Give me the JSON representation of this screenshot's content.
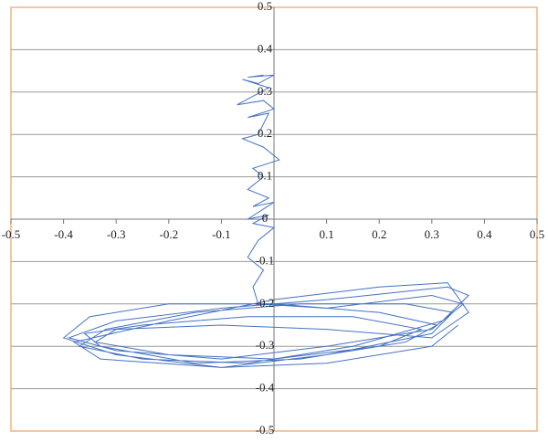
{
  "chart_data": {
    "type": "line",
    "color": "#4472c4",
    "border_color": "#f0a060",
    "grid": true,
    "xlim": [
      -0.5,
      0.5
    ],
    "ylim": [
      -0.5,
      0.5
    ],
    "xticks": [
      -0.5,
      -0.4,
      -0.3,
      -0.2,
      -0.1,
      0.1,
      0.2,
      0.3,
      0.4,
      0.5
    ],
    "yticks": [
      -0.5,
      -0.4,
      -0.3,
      -0.2,
      -0.1,
      0,
      0.1,
      0.2,
      0.3,
      0.4,
      0.5
    ],
    "x": [
      -0.02,
      -0.05,
      0.0,
      -0.03,
      -0.06,
      -0.01,
      -0.07,
      -0.02,
      0,
      -0.05,
      -0.01,
      -0.03,
      -0.06,
      -0.02,
      0.01,
      -0.04,
      -0.02,
      -0.05,
      -0.01,
      -0.04,
      0.0,
      -0.05,
      -0.01,
      -0.04,
      0,
      -0.03,
      -0.05,
      -0.02,
      -0.04,
      -0.03,
      0.1,
      0.3,
      0.36,
      0.3,
      0.1,
      -0.1,
      -0.3,
      -0.39,
      -0.3,
      -0.1,
      0.1,
      0.33,
      0.37,
      0.32,
      0.15,
      -0.05,
      -0.25,
      -0.37,
      -0.32,
      -0.15,
      0.05,
      0.25,
      0.34,
      0.3,
      0.1,
      -0.1,
      -0.3,
      -0.4,
      -0.35,
      -0.2,
      0,
      0.2,
      0.31,
      0.25,
      0.05,
      -0.15,
      -0.33,
      -0.36,
      -0.25,
      -0.05,
      0.15,
      0.28,
      0.2,
      0,
      -0.2,
      -0.34,
      -0.3,
      -0.1,
      0.1,
      0.3,
      0.37,
      0.33,
      0.2,
      0,
      -0.2,
      -0.38,
      -0.33,
      -0.1,
      0.1,
      0.3,
      0.35
    ],
    "y": [
      0.34,
      0.335,
      0.34,
      0.32,
      0.33,
      0.31,
      0.27,
      0.28,
      0.26,
      0.24,
      0.25,
      0.2,
      0.19,
      0.17,
      0.14,
      0.12,
      0.1,
      0.07,
      0.05,
      0.03,
      0.04,
      0.0,
      0.01,
      -0.01,
      -0.02,
      -0.05,
      -0.09,
      -0.12,
      -0.16,
      -0.2,
      -0.21,
      -0.18,
      -0.2,
      -0.26,
      -0.3,
      -0.33,
      -0.31,
      -0.28,
      -0.24,
      -0.21,
      -0.19,
      -0.16,
      -0.18,
      -0.24,
      -0.3,
      -0.34,
      -0.33,
      -0.3,
      -0.26,
      -0.22,
      -0.2,
      -0.2,
      -0.22,
      -0.27,
      -0.32,
      -0.35,
      -0.32,
      -0.28,
      -0.23,
      -0.2,
      -0.2,
      -0.22,
      -0.25,
      -0.29,
      -0.33,
      -0.34,
      -0.3,
      -0.27,
      -0.25,
      -0.23,
      -0.23,
      -0.26,
      -0.3,
      -0.33,
      -0.32,
      -0.29,
      -0.26,
      -0.25,
      -0.26,
      -0.28,
      -0.22,
      -0.15,
      -0.16,
      -0.19,
      -0.24,
      -0.29,
      -0.33,
      -0.35,
      -0.34,
      -0.3,
      -0.25
    ]
  }
}
